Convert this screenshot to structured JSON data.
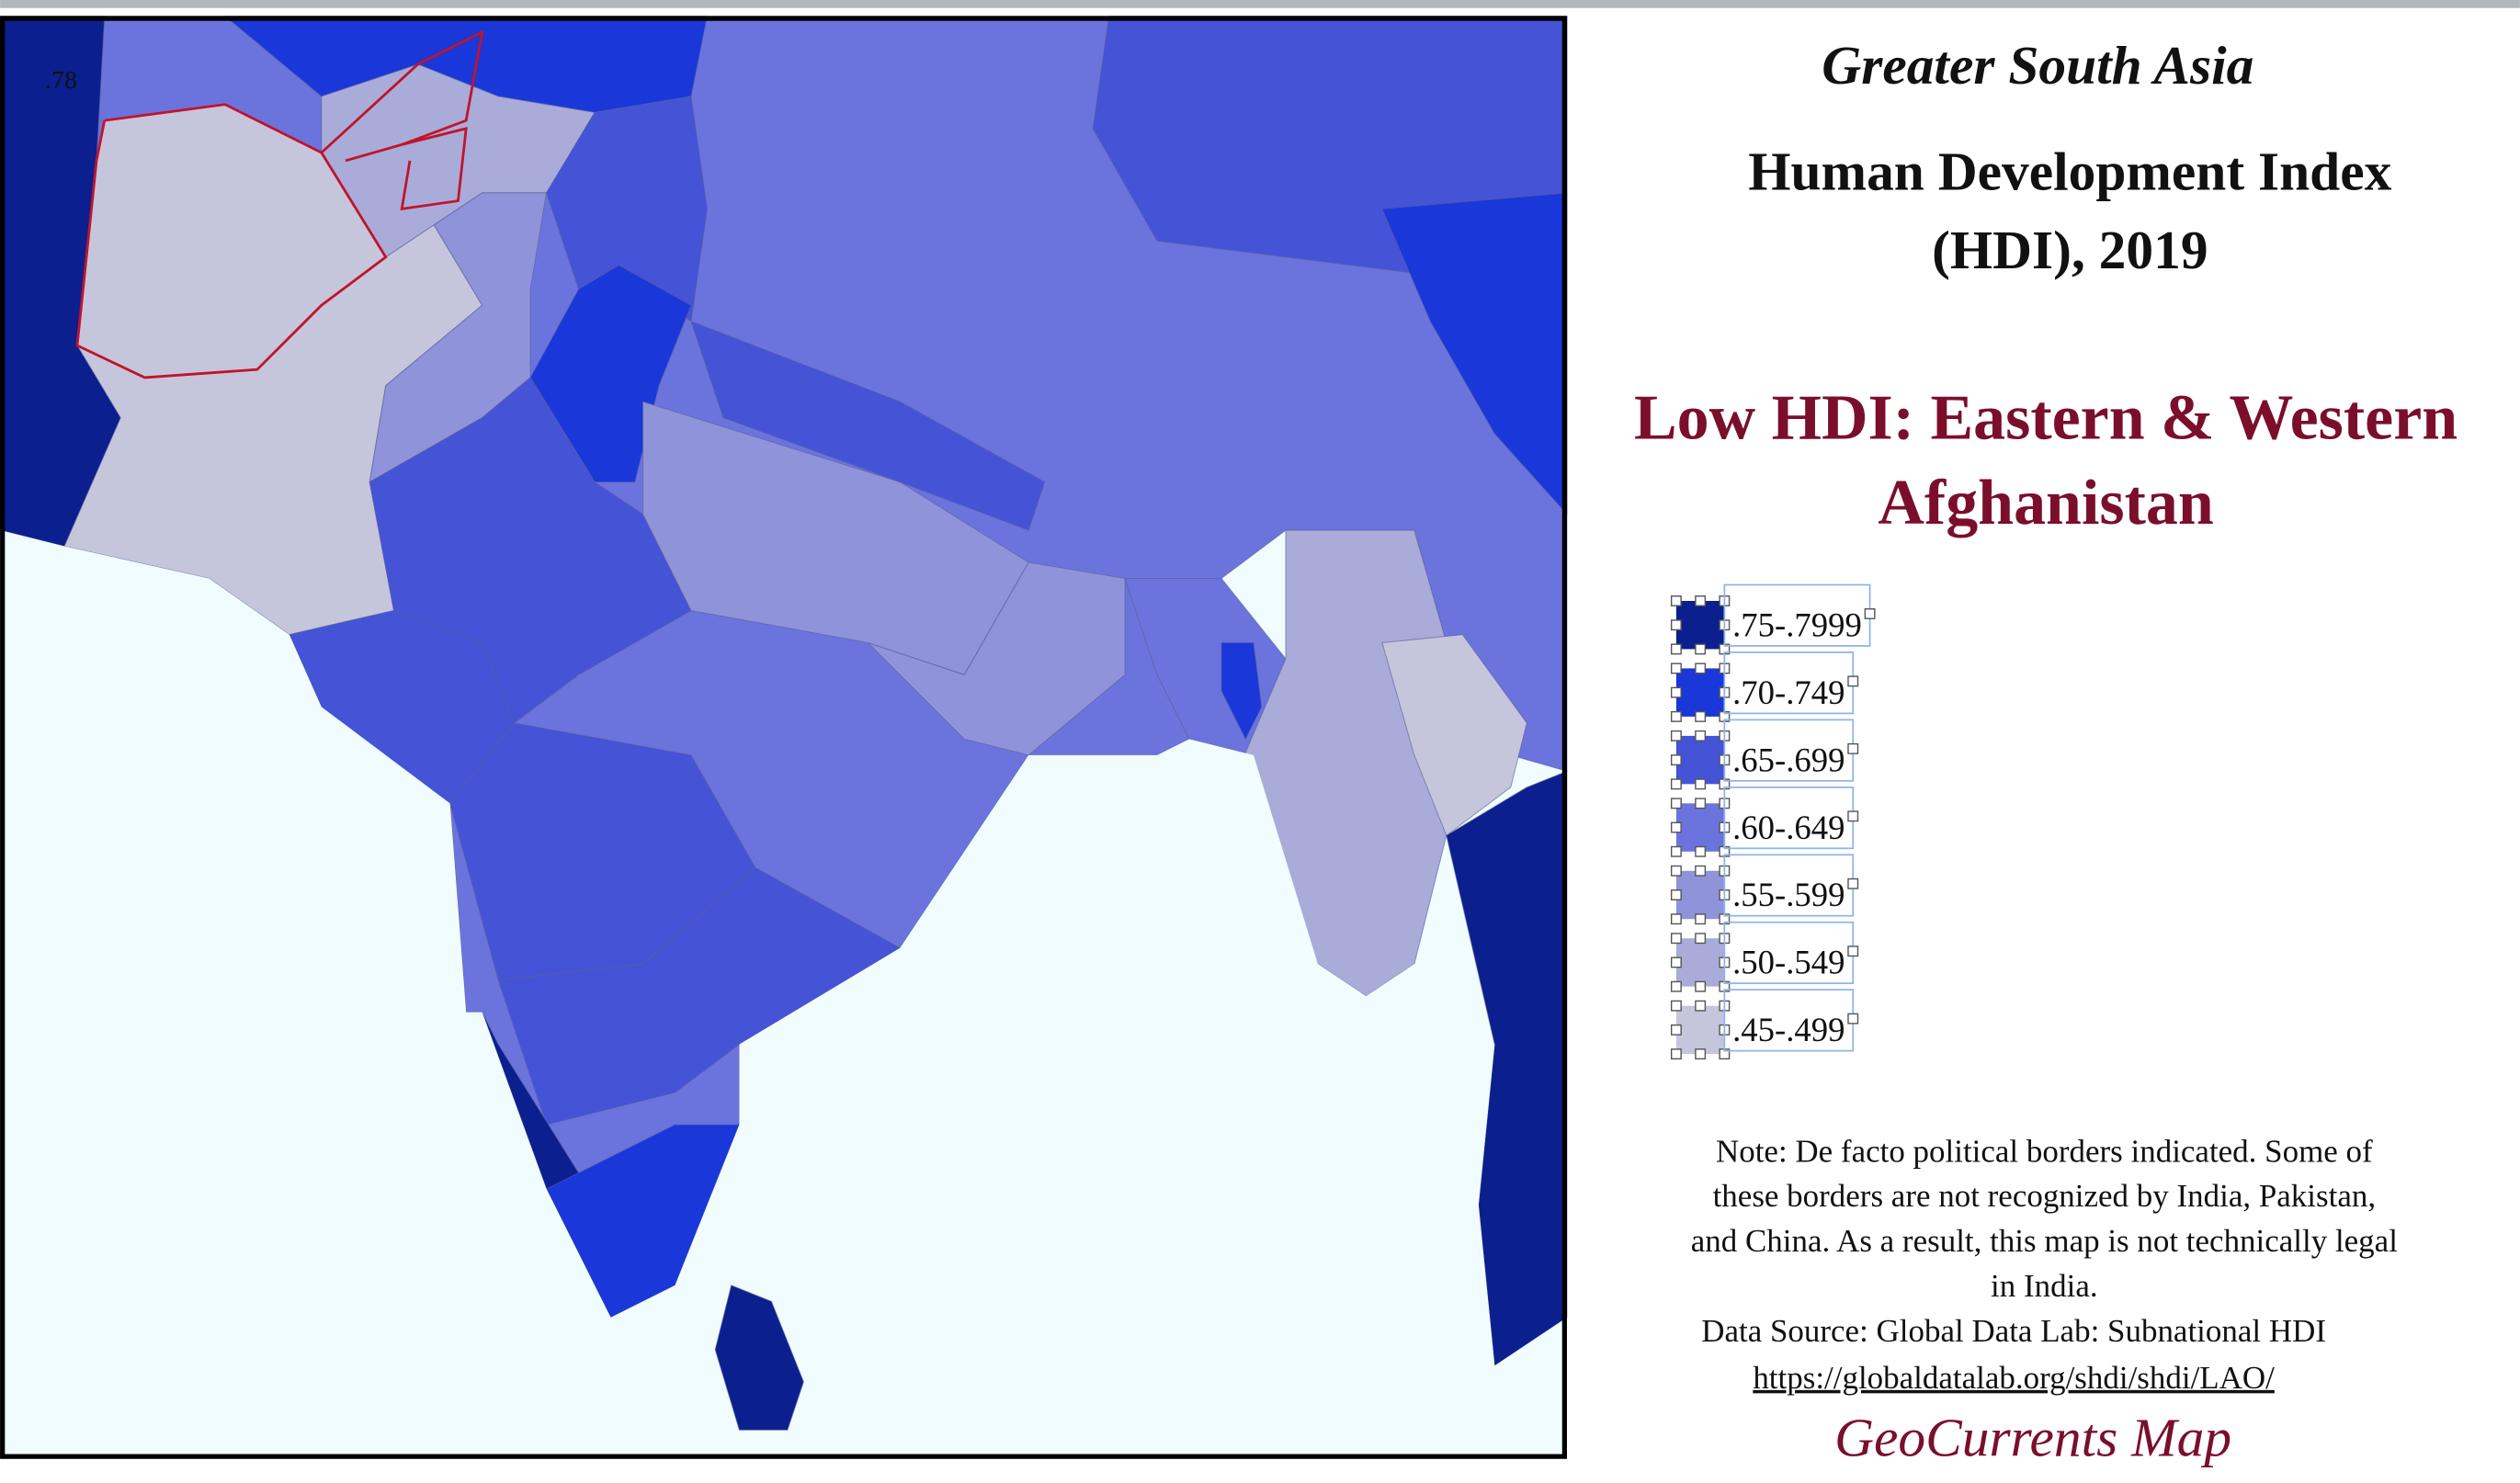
{
  "map_label": ".78",
  "header": {
    "title": "Greater South Asia",
    "subtitle_lines": [
      "Human Development Index",
      "(HDI), 2019"
    ],
    "headline_lines": [
      "Low HDI: Eastern & Western",
      "Afghanistan"
    ]
  },
  "legend": {
    "items": [
      {
        "label": ".75-.7999",
        "color": "#0b1f8e"
      },
      {
        "label": ".70-.749",
        "color": "#1a37d9"
      },
      {
        "label": ".65-.699",
        "color": "#4553d7"
      },
      {
        "label": ".60-.649",
        "color": "#6b74dd"
      },
      {
        "label": ".55-.599",
        "color": "#8f93d9"
      },
      {
        "label": ".50-.549",
        "color": "#a9acd9"
      },
      {
        "label": ".45-.499",
        "color": "#c5c6dc"
      }
    ]
  },
  "note_lines": [
    "Note: De facto political borders indicated. Some of",
    "these borders are not recognized by India, Pakistan,",
    "and China. As a result, this map is not technically legal",
    "in India."
  ],
  "source": "Data Source:  Global Data Lab: Subnational HDI",
  "url": "https://globaldatalab.org/shdi/shdi/LAO/",
  "brand": "GeoCurrents Map"
}
